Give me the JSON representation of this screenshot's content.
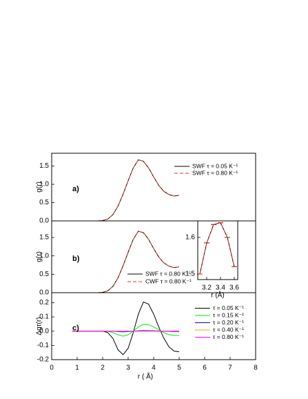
{
  "chart_data": [
    {
      "type": "line",
      "annotation": "a)",
      "ylabel": "g(r)",
      "legend": "upper right",
      "xlim": [
        0,
        8
      ],
      "ylim": [
        0,
        1.85
      ],
      "yticks": [
        {
          "value": 0,
          "label": "0.0"
        },
        0.5,
        {
          "value": 1,
          "label": "1.0"
        },
        1.5
      ],
      "x": [
        1.0,
        1.2,
        1.4,
        1.6,
        1.8,
        2.0,
        2.2,
        2.4,
        2.6,
        2.8,
        3.0,
        3.2,
        3.4,
        3.6,
        3.8,
        4.0,
        4.2,
        4.4,
        4.6,
        4.8,
        5.0
      ],
      "series": [
        {
          "name": "SWF   τ = 0.05 K⁻¹",
          "color": "#000000",
          "style": "solid",
          "values": [
            0,
            0,
            0,
            0,
            0,
            0.01,
            0.05,
            0.17,
            0.4,
            0.73,
            1.1,
            1.45,
            1.67,
            1.63,
            1.45,
            1.2,
            0.97,
            0.81,
            0.72,
            0.68,
            0.7
          ]
        },
        {
          "name": "SWF   τ = 0.80 K⁻¹",
          "color": "#e0302a",
          "style": "dashed",
          "values": [
            0,
            0,
            0,
            0,
            0,
            0.01,
            0.05,
            0.17,
            0.4,
            0.73,
            1.1,
            1.45,
            1.67,
            1.63,
            1.45,
            1.2,
            0.97,
            0.81,
            0.72,
            0.68,
            0.7
          ]
        }
      ]
    },
    {
      "type": "line",
      "annotation": "b)",
      "ylabel": "g(r)",
      "legend": "lower center",
      "xlim": [
        0,
        8
      ],
      "ylim": [
        0,
        1.95
      ],
      "yticks": [
        {
          "value": 0,
          "label": "0.0"
        },
        0.5,
        {
          "value": 1,
          "label": "1.0"
        },
        1.5
      ],
      "x": [
        1.0,
        1.2,
        1.4,
        1.6,
        1.8,
        2.0,
        2.2,
        2.4,
        2.6,
        2.8,
        3.0,
        3.2,
        3.4,
        3.6,
        3.8,
        4.0,
        4.2,
        4.4,
        4.6,
        4.8,
        5.0
      ],
      "series": [
        {
          "name": "SWF   τ = 0.80 K⁻¹",
          "color": "#000000",
          "style": "solid",
          "values": [
            0,
            0,
            0,
            0,
            0,
            0.01,
            0.05,
            0.17,
            0.4,
            0.73,
            1.1,
            1.45,
            1.67,
            1.63,
            1.45,
            1.2,
            0.97,
            0.81,
            0.72,
            0.68,
            0.7
          ]
        },
        {
          "name": "CWF   τ = 0.80 K⁻¹",
          "color": "#e0302a",
          "style": "dashed",
          "values": [
            0,
            0,
            0,
            0,
            0,
            0.01,
            0.05,
            0.17,
            0.4,
            0.73,
            1.1,
            1.45,
            1.67,
            1.63,
            1.45,
            1.2,
            0.97,
            0.81,
            0.72,
            0.68,
            0.7
          ]
        }
      ]
    },
    {
      "type": "line",
      "annotation": "c)",
      "ylabel": "Δgτ(r)",
      "xlabel": "r   ( Å)",
      "legend": "center right",
      "xlim": [
        0,
        8
      ],
      "ylim": [
        -0.2,
        0.27
      ],
      "xticks": [
        0,
        1,
        2,
        3,
        4,
        5,
        6,
        7,
        8
      ],
      "yticks": [
        -0.2,
        -0.1,
        {
          "value": 0,
          "label": "0.0"
        },
        0.1,
        0.2
      ],
      "x": [
        0.8,
        1.0,
        1.2,
        1.4,
        1.6,
        1.8,
        2.0,
        2.2,
        2.4,
        2.6,
        2.8,
        3.0,
        3.2,
        3.4,
        3.6,
        3.8,
        4.0,
        4.2,
        4.4,
        4.6,
        4.8,
        5.0
      ],
      "series": [
        {
          "name": "τ = 0.05 K⁻¹",
          "color": "#000000",
          "style": "solid",
          "values": [
            0,
            0,
            0,
            0,
            0,
            0,
            0,
            -0.01,
            -0.05,
            -0.13,
            -0.165,
            -0.12,
            -0.01,
            0.12,
            0.205,
            0.19,
            0.12,
            0.03,
            -0.05,
            -0.11,
            -0.14,
            -0.145
          ]
        },
        {
          "name": "τ = 0.15 K⁻¹",
          "color": "#00ee00",
          "style": "solid",
          "values": [
            0,
            0,
            0,
            0,
            0,
            0,
            0,
            0,
            -0.01,
            -0.025,
            -0.035,
            -0.025,
            0,
            0.03,
            0.048,
            0.045,
            0.03,
            0.01,
            -0.01,
            -0.025,
            -0.03,
            -0.03
          ]
        },
        {
          "name": "τ = 0.20 K⁻¹",
          "color": "#0000ff",
          "style": "solid",
          "values": [
            0,
            0,
            0,
            0,
            0,
            0,
            0,
            0,
            0,
            -0.003,
            -0.005,
            -0.003,
            0,
            0.003,
            0.005,
            0.004,
            0.003,
            0.001,
            -0.001,
            -0.002,
            -0.003,
            -0.003
          ]
        },
        {
          "name": "τ = 0.40 K⁻¹",
          "color": "#ffa500",
          "style": "solid",
          "values": [
            0,
            0,
            0,
            0,
            0,
            0,
            0,
            0,
            0,
            -0.001,
            -0.002,
            -0.001,
            0,
            0.001,
            0.002,
            0.002,
            0.001,
            0,
            0,
            -0.001,
            -0.001,
            -0.001
          ]
        },
        {
          "name": "τ = 0.80 K⁻¹",
          "color": "#ff00ff",
          "style": "solid",
          "values": [
            0,
            0,
            0,
            0,
            0,
            0,
            0,
            0,
            0,
            0,
            0,
            0,
            0,
            0,
            0,
            0,
            0,
            0,
            0,
            0,
            0,
            0
          ]
        }
      ]
    },
    {
      "type": "line",
      "xlabel": "r  (Å)",
      "xlim": [
        3.07,
        3.65
      ],
      "ylim": [
        1.485,
        1.645
      ],
      "xticks": [
        3.2,
        3.4,
        3.6
      ],
      "yticks": [
        1.5,
        1.6
      ],
      "x": [
        3.1,
        3.2,
        3.3,
        3.4,
        3.5,
        3.6
      ],
      "series": [
        {
          "color": "#000000",
          "style": "solid",
          "values": [
            1.5,
            1.585,
            1.635,
            1.64,
            1.6,
            1.52
          ]
        },
        {
          "color": "#e0302a",
          "style": "dashed",
          "values": [
            1.5,
            1.585,
            1.635,
            1.64,
            1.6,
            1.52
          ]
        }
      ]
    }
  ]
}
